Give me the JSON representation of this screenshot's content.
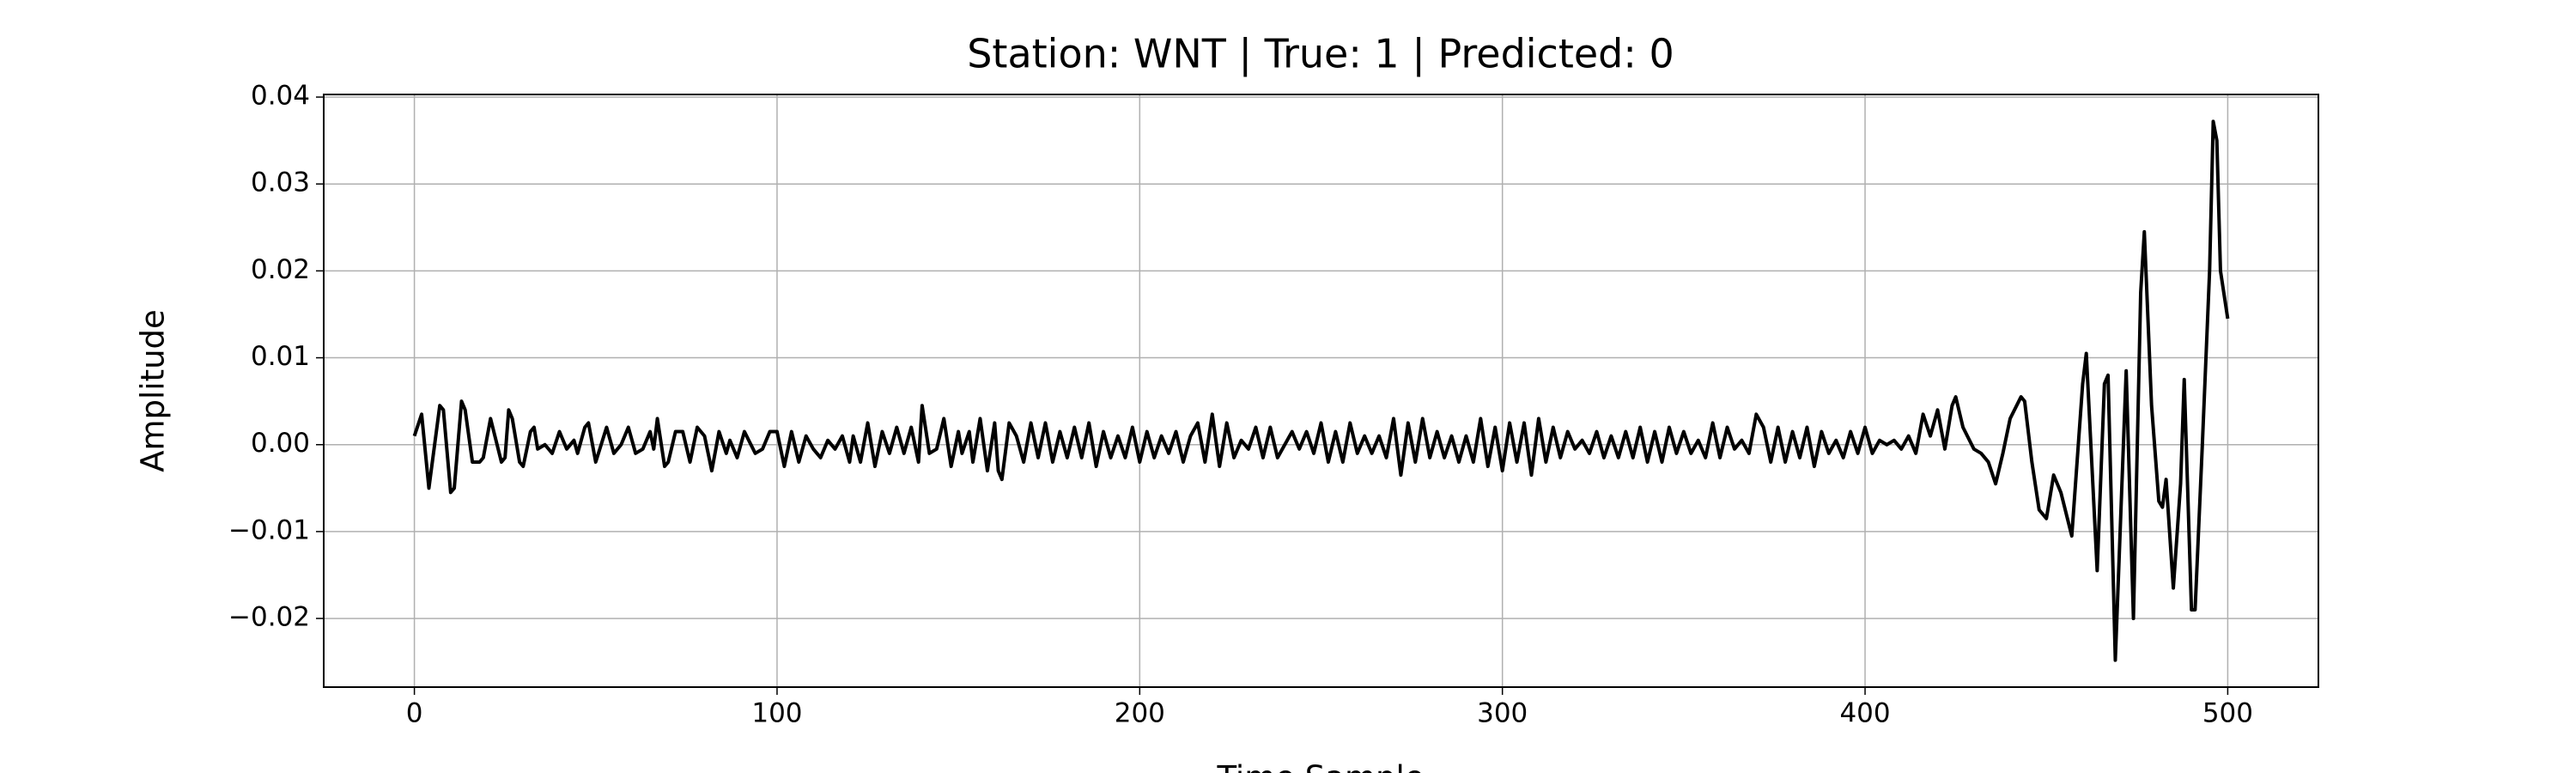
{
  "chart_data": {
    "type": "line",
    "title": "Station: WNT | True: 1 | Predicted: 0",
    "x_label": "Time Sample",
    "y_label": "Amplitude",
    "grid": true,
    "xlim": [
      -25,
      525
    ],
    "ylim": [
      -0.0279,
      0.0403
    ],
    "xticks": [
      0,
      100,
      200,
      300,
      400,
      500
    ],
    "yticks": [
      {
        "value": -0.02,
        "label": "−0.02"
      },
      {
        "value": -0.01,
        "label": "−0.01"
      },
      {
        "value": 0,
        "label": "0.00"
      },
      {
        "value": 0.01,
        "label": "0.01"
      },
      {
        "value": 0.02,
        "label": "0.02"
      },
      {
        "value": 0.03,
        "label": "0.03"
      },
      {
        "value": 0.04,
        "label": "0.04"
      }
    ],
    "x": [
      0,
      2,
      4,
      7,
      8,
      10,
      11,
      13,
      14,
      16,
      18,
      19,
      21,
      24,
      25,
      26,
      27,
      29,
      30,
      32,
      33,
      34,
      36,
      38,
      40,
      42,
      44,
      45,
      47,
      48,
      50,
      53,
      55,
      57,
      59,
      61,
      63,
      65,
      66,
      67,
      69,
      70,
      72,
      74,
      76,
      78,
      80,
      82,
      84,
      86,
      87,
      89,
      91,
      94,
      96,
      98,
      100,
      102,
      104,
      106,
      108,
      110,
      112,
      114,
      116,
      118,
      120,
      121,
      123,
      125,
      127,
      129,
      131,
      133,
      135,
      137,
      139,
      140,
      142,
      144,
      146,
      148,
      150,
      151,
      153,
      154,
      156,
      158,
      160,
      161,
      162,
      164,
      166,
      168,
      170,
      172,
      174,
      176,
      178,
      180,
      182,
      184,
      186,
      188,
      190,
      192,
      194,
      196,
      198,
      200,
      202,
      204,
      206,
      208,
      210,
      212,
      214,
      216,
      218,
      220,
      222,
      224,
      226,
      228,
      230,
      232,
      234,
      236,
      238,
      240,
      242,
      244,
      246,
      248,
      250,
      252,
      254,
      256,
      258,
      260,
      262,
      264,
      266,
      268,
      270,
      272,
      274,
      276,
      278,
      280,
      282,
      284,
      286,
      288,
      290,
      292,
      294,
      296,
      298,
      300,
      302,
      304,
      306,
      308,
      310,
      312,
      314,
      316,
      318,
      320,
      322,
      324,
      326,
      328,
      330,
      332,
      334,
      336,
      338,
      340,
      342,
      344,
      346,
      348,
      350,
      352,
      354,
      356,
      358,
      360,
      362,
      364,
      366,
      368,
      370,
      372,
      374,
      376,
      378,
      380,
      382,
      384,
      386,
      388,
      390,
      392,
      394,
      396,
      398,
      400,
      402,
      404,
      406,
      408,
      410,
      412,
      414,
      416,
      418,
      420,
      422,
      424,
      425,
      427,
      430,
      432,
      434,
      436,
      438,
      440,
      443,
      444,
      446,
      448,
      450,
      452,
      454,
      457,
      460,
      461,
      464,
      466,
      467,
      469,
      472,
      474,
      476,
      477,
      479,
      481,
      482,
      483,
      485,
      487,
      488,
      490,
      491,
      493,
      495,
      496,
      497,
      498,
      500
    ],
    "series": [
      {
        "name": "Amplitude",
        "color": "#000000",
        "values": [
          0.001,
          0.0035,
          -0.005,
          0.0045,
          0.004,
          -0.0055,
          -0.005,
          0.005,
          0.004,
          -0.002,
          -0.002,
          -0.0015,
          0.003,
          -0.002,
          -0.0015,
          0.004,
          0.003,
          -0.002,
          -0.0025,
          0.0015,
          0.002,
          -0.0005,
          0,
          -0.001,
          0.0015,
          -0.0005,
          0.0005,
          -0.001,
          0.002,
          0.0025,
          -0.002,
          0.002,
          -0.001,
          0,
          0.002,
          -0.001,
          -0.0005,
          0.0015,
          -0.0005,
          0.003,
          -0.0025,
          -0.002,
          0.0015,
          0.0015,
          -0.002,
          0.002,
          0.001,
          -0.003,
          0.0015,
          -0.001,
          0.0005,
          -0.0015,
          0.0015,
          -0.001,
          -0.0005,
          0.0015,
          0.0015,
          -0.0025,
          0.0015,
          -0.002,
          0.001,
          -0.0005,
          -0.0015,
          0.0005,
          -0.0005,
          0.001,
          -0.002,
          0.001,
          -0.002,
          0.0025,
          -0.0025,
          0.0015,
          -0.001,
          0.002,
          -0.001,
          0.002,
          -0.002,
          0.0045,
          -0.001,
          -0.0005,
          0.003,
          -0.0025,
          0.0015,
          -0.001,
          0.0015,
          -0.002,
          0.003,
          -0.003,
          0.0025,
          -0.003,
          -0.004,
          0.0025,
          0.001,
          -0.002,
          0.0025,
          -0.0015,
          0.0025,
          -0.002,
          0.0015,
          -0.0015,
          0.002,
          -0.0015,
          0.0025,
          -0.0025,
          0.0015,
          -0.0015,
          0.001,
          -0.0015,
          0.002,
          -0.002,
          0.0015,
          -0.0015,
          0.001,
          -0.001,
          0.0015,
          -0.002,
          0.001,
          0.0025,
          -0.002,
          0.0035,
          -0.0025,
          0.0025,
          -0.0015,
          0.0005,
          -0.0005,
          0.002,
          -0.0015,
          0.002,
          -0.0015,
          0,
          0.0015,
          -0.0005,
          0.0015,
          -0.001,
          0.0025,
          -0.002,
          0.0015,
          -0.002,
          0.0025,
          -0.001,
          0.001,
          -0.001,
          0.001,
          -0.0015,
          0.003,
          -0.0035,
          0.0025,
          -0.002,
          0.003,
          -0.0015,
          0.0015,
          -0.0015,
          0.001,
          -0.002,
          0.001,
          -0.002,
          0.003,
          -0.0025,
          0.002,
          -0.003,
          0.0025,
          -0.002,
          0.0025,
          -0.0035,
          0.003,
          -0.002,
          0.002,
          -0.0015,
          0.0015,
          -0.0005,
          0.0005,
          -0.001,
          0.0015,
          -0.0015,
          0.001,
          -0.0015,
          0.0015,
          -0.0015,
          0.002,
          -0.002,
          0.0015,
          -0.002,
          0.002,
          -0.001,
          0.0015,
          -0.001,
          0.0005,
          -0.0015,
          0.0025,
          -0.0015,
          0.002,
          -0.0005,
          0.0005,
          -0.001,
          0.0035,
          0.002,
          -0.002,
          0.002,
          -0.002,
          0.0015,
          -0.0015,
          0.002,
          -0.0025,
          0.0015,
          -0.001,
          0.0005,
          -0.0015,
          0.0015,
          -0.001,
          0.002,
          -0.001,
          0.0005,
          0,
          0.0005,
          -0.0005,
          0.001,
          -0.001,
          0.0035,
          0.001,
          0.004,
          -0.0005,
          0.0045,
          0.0055,
          0.002,
          -0.0005,
          -0.001,
          -0.002,
          -0.0045,
          -0.001,
          0.003,
          0.0055,
          0.005,
          -0.002,
          -0.0075,
          -0.0085,
          -0.0035,
          -0.0055,
          -0.0105,
          0.007,
          0.0105,
          -0.0145,
          0.007,
          0.008,
          -0.0248,
          0.0085,
          -0.02,
          0.0175,
          0.0245,
          0.0045,
          -0.0065,
          -0.0072,
          -0.004,
          -0.0165,
          -0.0045,
          0.0075,
          -0.019,
          -0.019,
          0,
          0.02,
          0.0372,
          0.035,
          0.02,
          0.0145
        ]
      }
    ]
  }
}
